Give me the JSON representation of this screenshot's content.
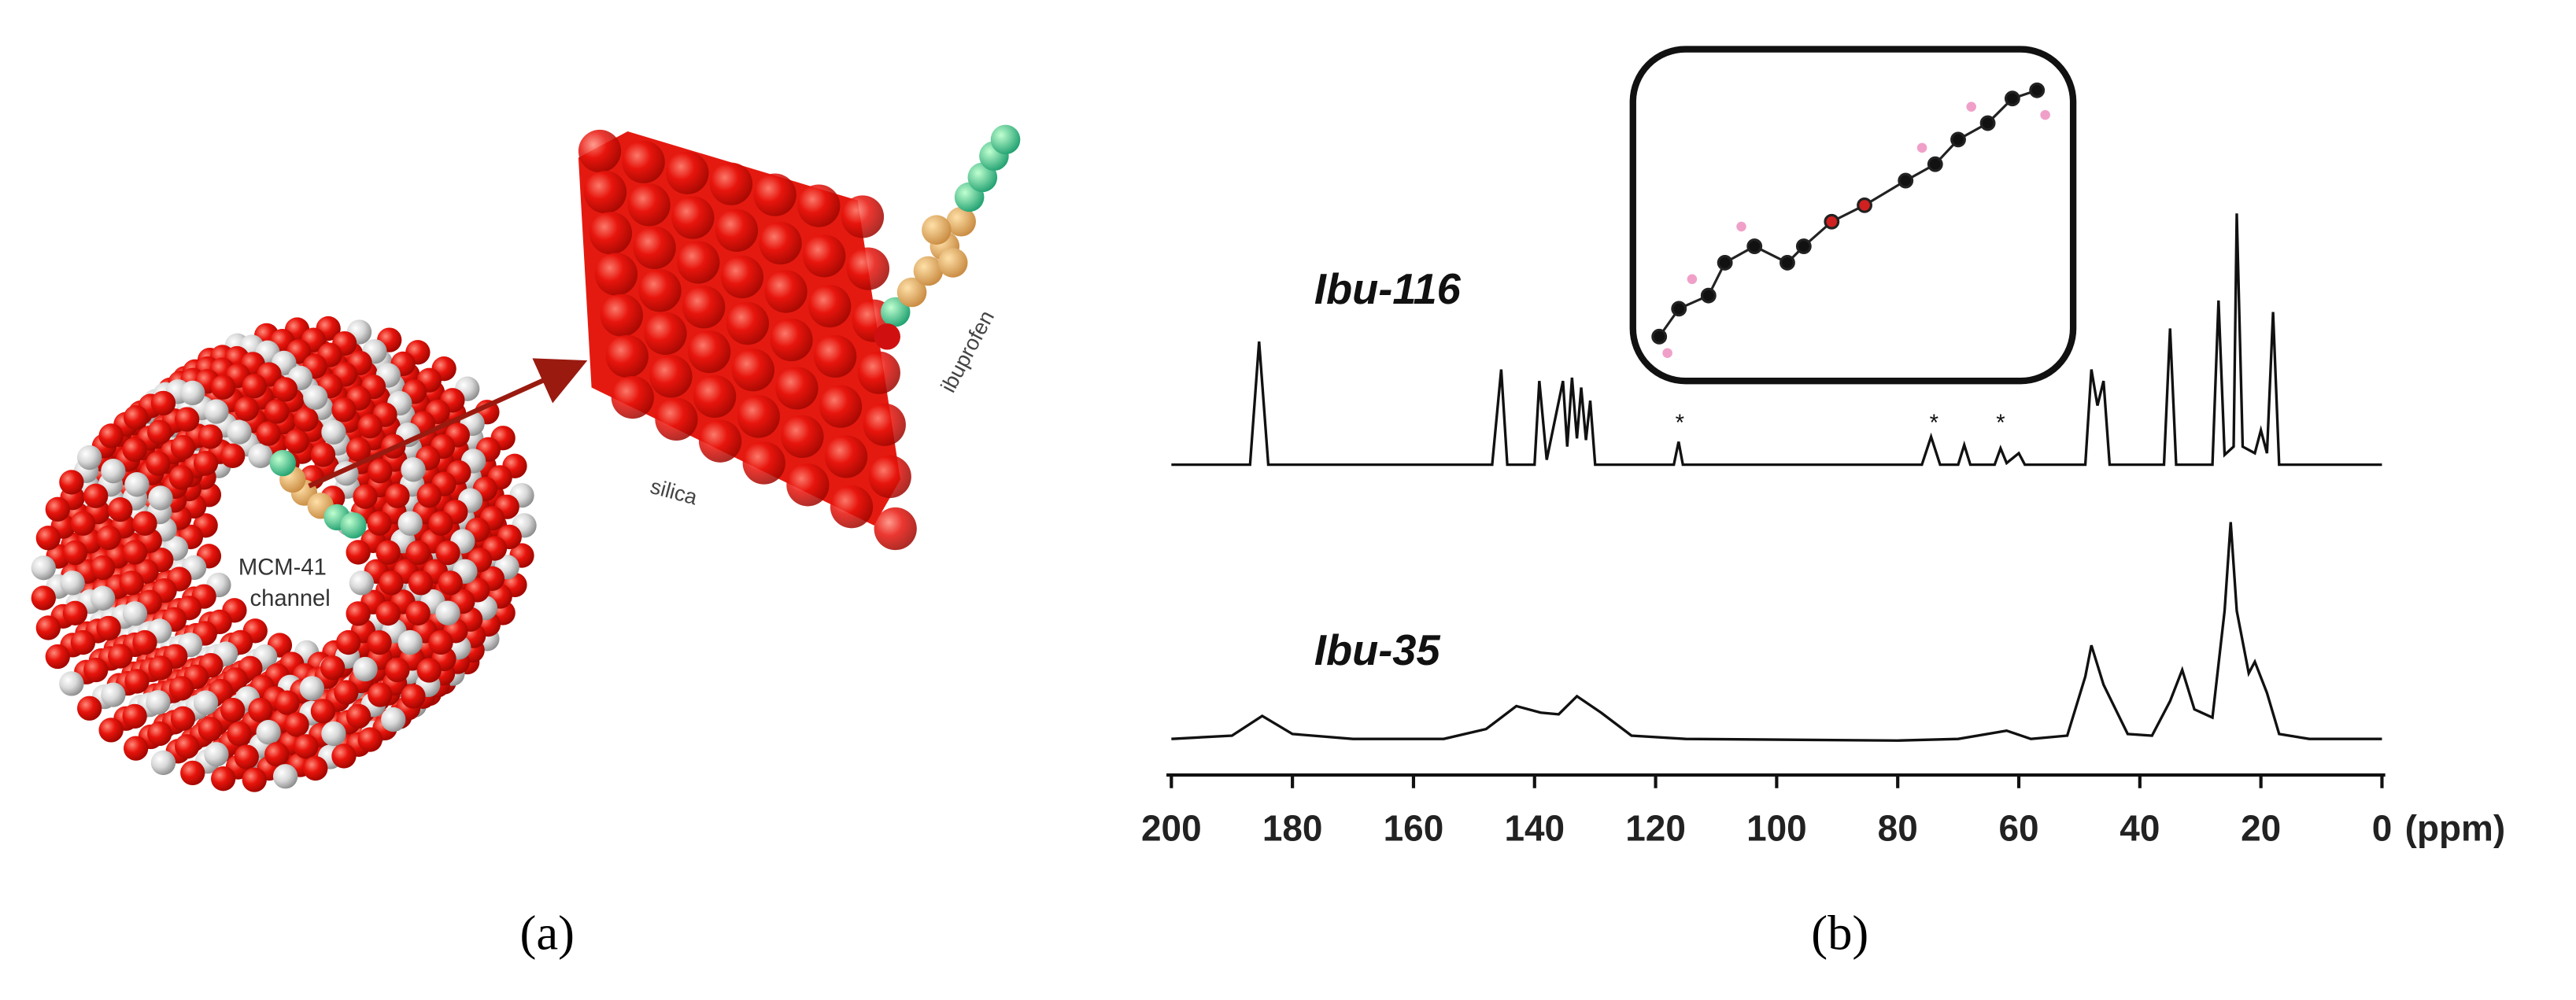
{
  "panel_a": {
    "label": "(a)",
    "silica": "silica",
    "ibuprofen": "ibuprofen",
    "channel_line_1": "MCM-41",
    "channel_line_2": "channel"
  },
  "chart_data": {
    "type": "line",
    "panel_label": "(b)",
    "xlabel": "(ppm)",
    "xlim": [
      200,
      0
    ],
    "xticks": [
      200,
      180,
      160,
      140,
      120,
      100,
      80,
      60,
      40,
      20,
      0
    ],
    "ylim": [
      0,
      350
    ],
    "series": [
      {
        "name": "Ibu-116",
        "color": "#111111",
        "x": [
          200,
          187,
          185.5,
          184,
          147,
          145.5,
          144.5,
          140,
          139.2,
          138,
          135.3,
          134.6,
          133.8,
          133,
          132.3,
          131.5,
          130.8,
          130,
          117,
          116.2,
          115.5,
          76,
          74.5,
          73,
          70,
          69,
          68,
          64,
          63,
          62,
          60,
          59,
          49,
          48,
          47,
          46,
          45,
          36,
          35,
          34,
          28,
          27,
          26,
          24.5,
          24,
          23,
          21,
          20,
          19,
          18,
          17,
          0
        ],
        "values": [
          189,
          189,
          264,
          189,
          189,
          247,
          189,
          189,
          240,
          192,
          240,
          200,
          242,
          205,
          236,
          204,
          228,
          189,
          189,
          203,
          189,
          189,
          206,
          189,
          189,
          201,
          189,
          189,
          199,
          190,
          196,
          189,
          189,
          247,
          225,
          240,
          189,
          189,
          272,
          189,
          189,
          289,
          195,
          200,
          342,
          200,
          196,
          210,
          196,
          282,
          189,
          189
        ]
      },
      {
        "name": "Ibu-35",
        "color": "#111111",
        "x": [
          200,
          190,
          185,
          180,
          170,
          155,
          148,
          143,
          139,
          136,
          133,
          129,
          124,
          115,
          80,
          70,
          62,
          58,
          52,
          49,
          48,
          46,
          42,
          38,
          35,
          33,
          31,
          28,
          26,
          25,
          24,
          22,
          21,
          19,
          17,
          12,
          0
        ],
        "values": [
          22,
          24,
          36,
          25,
          22,
          22,
          28,
          42,
          38,
          37,
          48,
          38,
          24,
          22,
          21,
          22,
          27,
          22,
          24,
          60,
          79,
          55,
          25,
          24,
          45,
          64,
          40,
          35,
          100,
          154,
          100,
          62,
          69,
          50,
          25,
          22,
          22
        ]
      }
    ],
    "annotations": [
      {
        "text": "*",
        "x": 116
      },
      {
        "text": "*",
        "x": 74
      },
      {
        "text": "*",
        "x": 63
      }
    ]
  }
}
